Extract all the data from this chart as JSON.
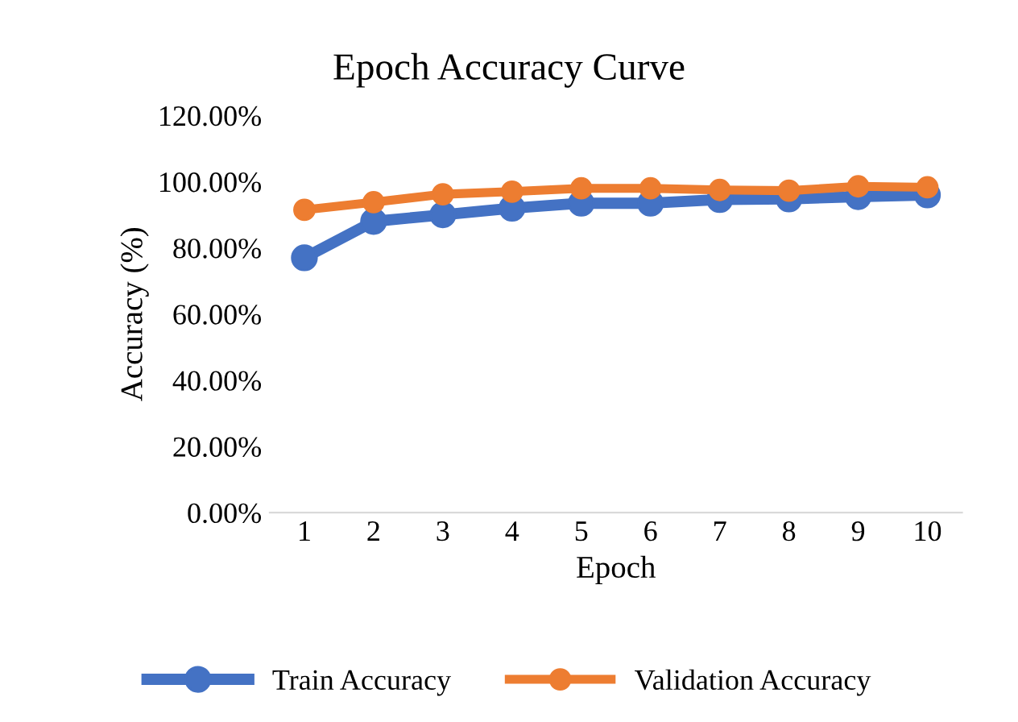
{
  "chart_data": {
    "type": "line",
    "title": "Epoch Accuracy Curve",
    "xlabel": "Epoch",
    "ylabel": "Accuracy (%)",
    "categories": [
      "1",
      "2",
      "3",
      "4",
      "5",
      "6",
      "7",
      "8",
      "9",
      "10"
    ],
    "series": [
      {
        "name": "Train Accuracy",
        "color": "#4472c4",
        "values": [
          77,
          88,
          90,
          92,
          93.5,
          93.5,
          94.6,
          94.8,
          95.5,
          96
        ]
      },
      {
        "name": "Validation Accuracy",
        "color": "#ed7d31",
        "values": [
          91.5,
          93.8,
          96.2,
          97,
          98,
          98,
          97.5,
          97.3,
          98.6,
          98.3
        ]
      }
    ],
    "ylim": [
      0,
      120
    ],
    "yticks": [
      {
        "value": 0,
        "label": "0.00%"
      },
      {
        "value": 20,
        "label": "20.00%"
      },
      {
        "value": 40,
        "label": "40.00%"
      },
      {
        "value": 60,
        "label": "60.00%"
      },
      {
        "value": 80,
        "label": "80.00%"
      },
      {
        "value": 100,
        "label": "100.00%"
      },
      {
        "value": 120,
        "label": "120.00%"
      }
    ],
    "grid": false,
    "legend": "bottom",
    "marker": "circle",
    "line_style": "solid"
  }
}
